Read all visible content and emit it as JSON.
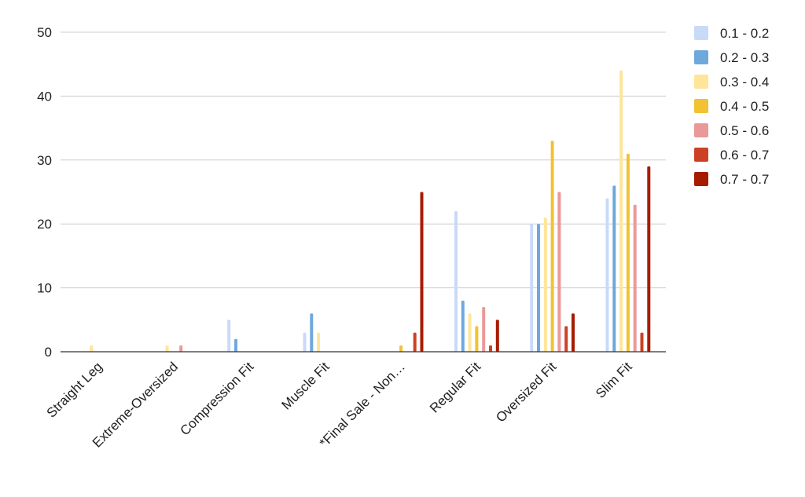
{
  "chart_data": {
    "type": "bar",
    "title": "",
    "xlabel": "",
    "ylabel": "",
    "ylim": [
      0,
      50
    ],
    "yticks": [
      0,
      10,
      20,
      30,
      40,
      50
    ],
    "grid": true,
    "legend_position": "right",
    "categories": [
      "Straight Leg",
      "Extreme-Oversized",
      "Compression Fit",
      "Muscle Fit",
      "*Final Sale - Non…",
      "Regular Fit",
      "Oversized Fit",
      "Slim Fit"
    ],
    "series": [
      {
        "name": "0.1 - 0.2",
        "color": "#c9daf8",
        "values": [
          0,
          0,
          5,
          3,
          0,
          22,
          20,
          24
        ]
      },
      {
        "name": "0.2 - 0.3",
        "color": "#6fa8dc",
        "values": [
          0,
          0,
          2,
          6,
          0,
          8,
          20,
          26
        ]
      },
      {
        "name": "0.3 - 0.4",
        "color": "#ffe599",
        "values": [
          1,
          1,
          0,
          3,
          0,
          6,
          21,
          44
        ]
      },
      {
        "name": "0.4 - 0.5",
        "color": "#f1c232",
        "values": [
          0,
          0,
          0,
          0,
          1,
          4,
          33,
          31
        ]
      },
      {
        "name": "0.5 - 0.6",
        "color": "#ea9999",
        "values": [
          0,
          1,
          0,
          0,
          0,
          7,
          25,
          23
        ]
      },
      {
        "name": "0.6 - 0.7",
        "color": "#cc4125",
        "values": [
          0,
          0,
          0,
          0,
          3,
          1,
          4,
          3
        ]
      },
      {
        "name": "0.7 - 0.7",
        "color": "#a61c00",
        "values": [
          0,
          0,
          0,
          0,
          25,
          5,
          6,
          29
        ]
      }
    ]
  }
}
